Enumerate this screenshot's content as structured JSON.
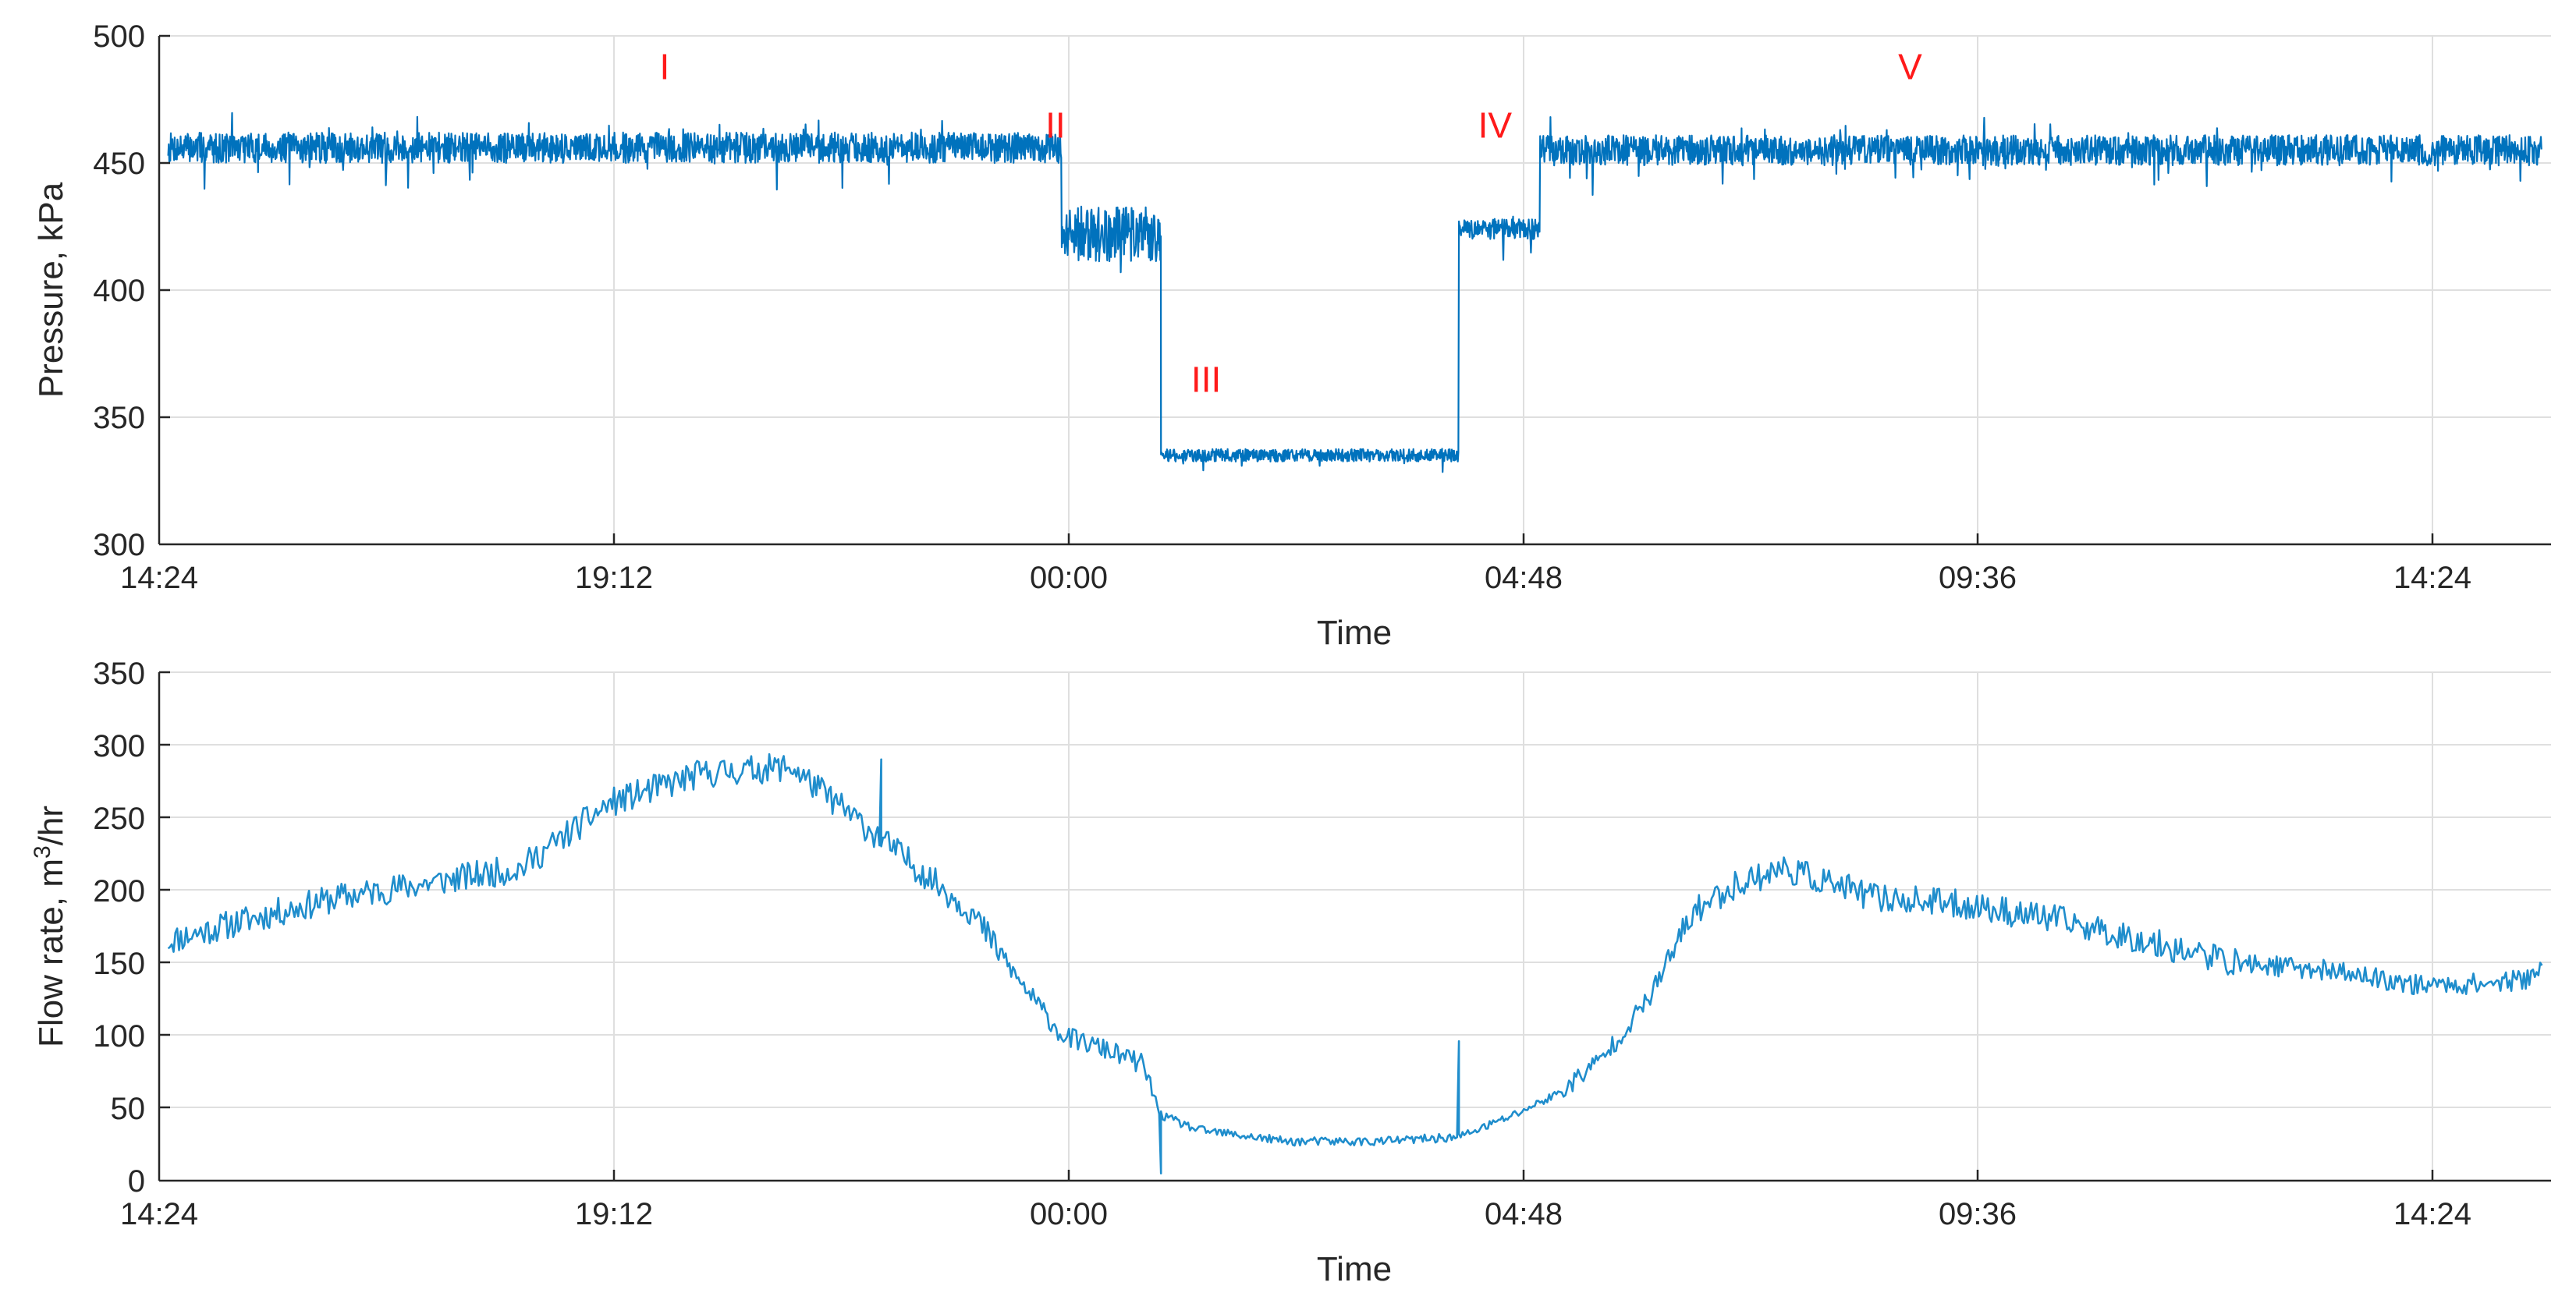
{
  "figure": {
    "x_ticks": [
      "14:24",
      "19:12",
      "00:00",
      "04:48",
      "09:36",
      "14:24"
    ]
  },
  "chart_data": [
    {
      "type": "line",
      "xlabel": "Time",
      "ylabel": "Pressure, kPa",
      "ylim": [
        300,
        500
      ],
      "yticks": [
        "300",
        "350",
        "400",
        "450",
        "500"
      ],
      "grid": true,
      "x_unit": "hours from 14:24 (day 1)",
      "x_range": [
        0,
        26.5
      ],
      "line_color": "#0072bd",
      "annotation_color": "#ff1a1a",
      "annotations": [
        {
          "text": "I",
          "x": 5.6,
          "y": 483
        },
        {
          "text": "II",
          "x": 9.93,
          "y": 460
        },
        {
          "text": "III",
          "x": 11.6,
          "y": 360
        },
        {
          "text": "IV",
          "x": 14.8,
          "y": 460
        },
        {
          "text": "V",
          "x": 19.4,
          "y": 483
        }
      ],
      "segments": [
        {
          "x_start": 0.1,
          "x_end": 10.0,
          "mean": 456,
          "noise": 6,
          "note": "phase I"
        },
        {
          "x_start": 10.0,
          "x_end": 11.1,
          "mean": 422,
          "noise": 11,
          "note": "phase II"
        },
        {
          "x_start": 11.1,
          "x_end": 14.4,
          "mean": 335,
          "noise": 2.5,
          "note": "phase III"
        },
        {
          "x_start": 14.4,
          "x_end": 15.3,
          "mean": 424,
          "noise": 4,
          "note": "phase IV"
        },
        {
          "x_start": 15.3,
          "x_end": 26.4,
          "mean": 455,
          "noise": 6,
          "note": "phase V"
        }
      ]
    },
    {
      "type": "line",
      "xlabel": "Time",
      "ylabel_main": "Flow rate, m",
      "ylabel_sup": "3",
      "ylabel_tail": "/hr",
      "ylim": [
        0,
        350
      ],
      "yticks": [
        "0",
        "50",
        "100",
        "150",
        "200",
        "250",
        "300",
        "350"
      ],
      "grid": true,
      "x_unit": "hours from 14:24 (day 1)",
      "x_range": [
        0,
        26.5
      ],
      "line_color": "#1f8dcc",
      "series": [
        {
          "x": [
            0.1,
            1.0,
            2.0,
            3.0,
            4.0,
            5.0,
            6.0,
            7.0,
            8.0,
            9.0,
            9.5,
            10.0,
            10.5,
            10.9,
            11.1,
            11.5,
            12.5,
            13.5,
            14.4,
            15.0,
            15.5,
            16.0,
            16.5,
            17.0,
            17.5,
            18.0,
            19.0,
            20.0,
            21.0,
            22.0,
            23.0,
            24.0,
            25.0,
            25.5,
            26.2,
            26.4
          ],
          "y": [
            165,
            180,
            195,
            205,
            215,
            260,
            280,
            285,
            235,
            185,
            140,
            100,
            90,
            80,
            45,
            35,
            27,
            27,
            30,
            45,
            60,
            85,
            125,
            185,
            205,
            215,
            195,
            190,
            180,
            165,
            150,
            145,
            135,
            135,
            138,
            148
          ]
        }
      ],
      "spikes": [
        {
          "x": 8.0,
          "y": 290
        },
        {
          "x": 11.1,
          "y": 5
        },
        {
          "x": 14.4,
          "y": 96
        }
      ]
    }
  ]
}
